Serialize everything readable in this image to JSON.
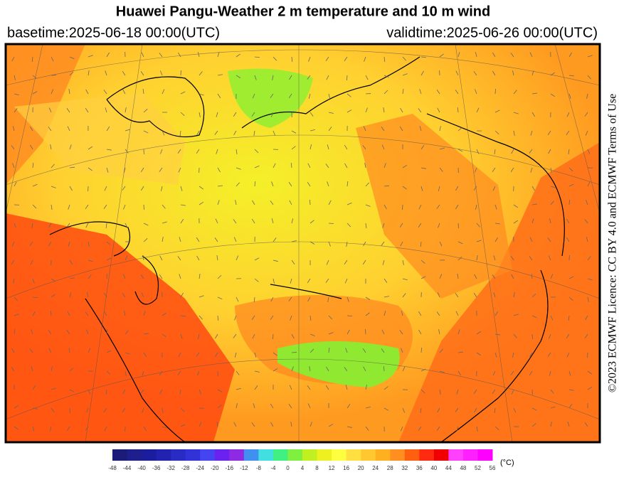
{
  "header": {
    "title": "Huawei Pangu-Weather  2 m temperature and 10 m wind",
    "basetime": "basetime:2025-06-18 00:00(UTC)",
    "validtime": "validtime:2025-06-26 00:00(UTC)"
  },
  "licence": "©2023 ECMWF Licence: CC BY 4.0 and ECMWF Terms of Use",
  "colorbar": {
    "unit": "(°C)",
    "ticks": [
      -48,
      -44,
      -40,
      -36,
      -32,
      -28,
      -24,
      -20,
      -16,
      -12,
      -8,
      -4,
      0,
      4,
      8,
      12,
      16,
      20,
      24,
      28,
      32,
      36,
      40,
      44,
      48,
      52,
      56
    ],
    "colors": [
      "#1b1b7a",
      "#1e1e8c",
      "#1c1c9e",
      "#2222b0",
      "#2a2ac4",
      "#3232d8",
      "#4444f0",
      "#6a22f0",
      "#8e2be2",
      "#4090f0",
      "#40e0e0",
      "#40f080",
      "#80f040",
      "#c0f020",
      "#eef020",
      "#ffff40",
      "#ffe040",
      "#ffc830",
      "#ffb020",
      "#ff9020",
      "#ff6010",
      "#ff2a10",
      "#f00000",
      "#ff40ff",
      "#ff20ff",
      "#ff00ff"
    ]
  }
}
